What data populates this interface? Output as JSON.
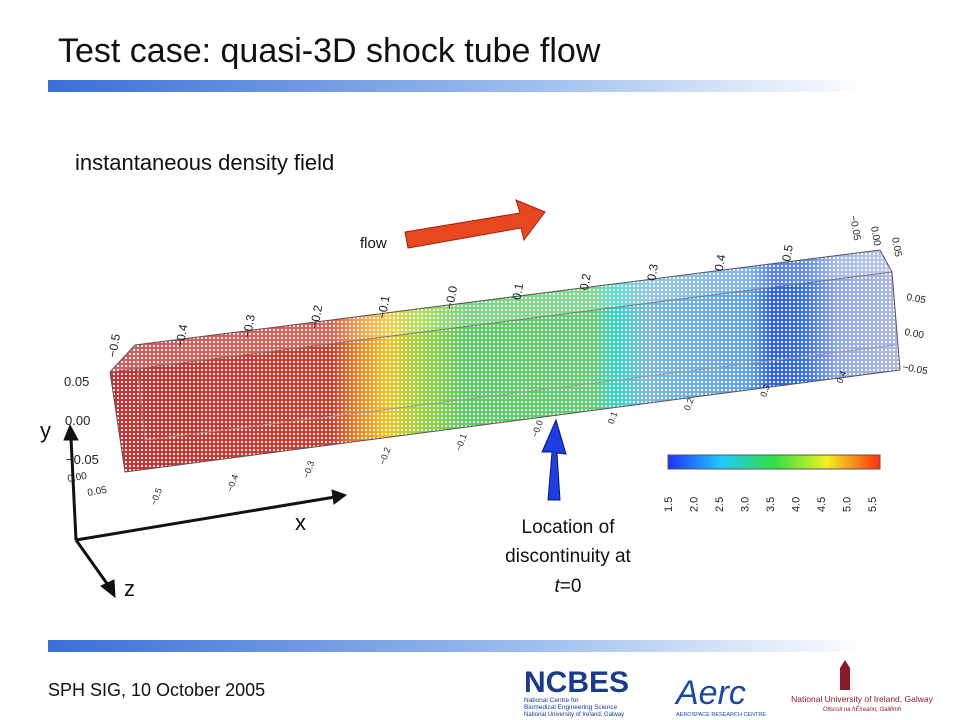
{
  "header": {
    "title": "Test case: quasi-3D shock tube flow"
  },
  "subtitle": "instantaneous density field",
  "flow_label": "flow",
  "axes": {
    "y": "y",
    "x": "x",
    "z": "z"
  },
  "tube": {
    "top_labels": [
      "−0.5",
      "−0.4",
      "−0.3",
      "−0.2",
      "−0.1",
      "−0.0",
      "0.1",
      "0.2",
      "0.3",
      "0.4",
      "0.5"
    ],
    "bottom_labels": [
      "−0.5",
      "−0.4",
      "−0.3",
      "−0.2",
      "−0.1",
      "−0.0",
      "0.1",
      "0.2",
      "0.3",
      "0.4"
    ],
    "left_labels": [
      "0.05",
      "0.00",
      "−0.05"
    ],
    "left_z_labels": [
      "0.00",
      "0.05"
    ],
    "right_labels": [
      "0.05",
      "0.00",
      "−0.05"
    ],
    "top_right_labels": [
      "−0.05",
      "0.00",
      "0.05"
    ]
  },
  "colorbar": {
    "labels": [
      "1.5",
      "2.0",
      "2.5",
      "3.0",
      "3.5",
      "4.0",
      "4.5",
      "5.0",
      "5.5"
    ]
  },
  "annotation": {
    "lines": [
      "Location of",
      "discontinuity at"
    ],
    "var": "t",
    "rest": "=0"
  },
  "footer": {
    "text": "SPH SIG, 10 October 2005"
  },
  "logos": {
    "ncbes": {
      "name": "NCBES",
      "line1": "National Centre for",
      "line2": "Biomedical Engineering Science",
      "line3": "National University of Ireland, Galway"
    },
    "aerc": {
      "name": "Aerc",
      "sub": "AEROSPACE RESEARCH CENTRE"
    },
    "nui": {
      "name": "National University of Ireland, Galway",
      "sub": "Ollscoil na hÉireann, Gaillimh"
    }
  }
}
